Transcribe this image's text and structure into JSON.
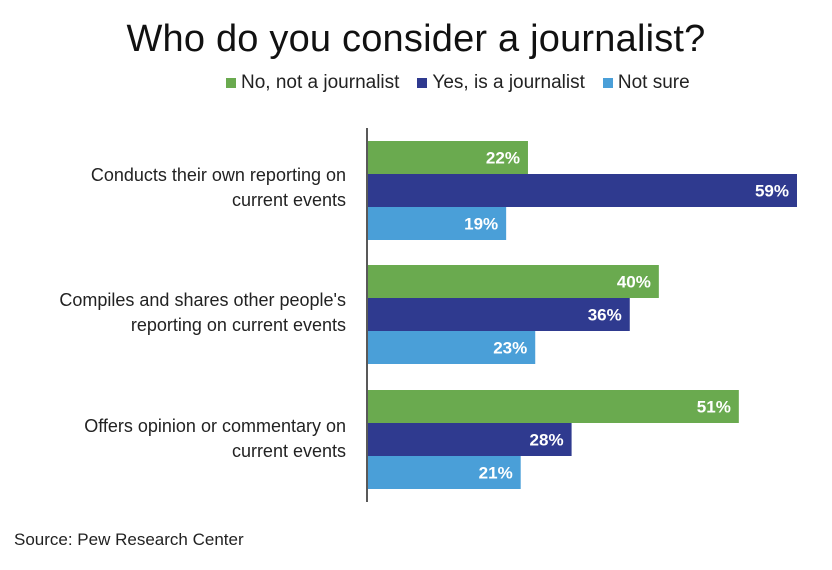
{
  "chart_data": {
    "type": "bar",
    "orientation": "horizontal",
    "title": "Who do you consider a journalist?",
    "categories": [
      "Conducts their own reporting on current events",
      "Compiles and shares other people's reporting on current events",
      "Offers opinion or commentary on current events"
    ],
    "category_lines": [
      [
        "Conducts their own reporting on",
        "current events"
      ],
      [
        "Compiles and shares other people's",
        "reporting on current events"
      ],
      [
        "Offers opinion or commentary on",
        "current events"
      ]
    ],
    "series": [
      {
        "name": "No, not a journalist",
        "color": "#6aaa4f",
        "values": [
          22,
          40,
          51
        ],
        "labels": [
          "22%",
          "40%",
          "51%"
        ]
      },
      {
        "name": "Yes, is a journalist",
        "color": "#2f3a8f",
        "values": [
          59,
          36,
          28
        ],
        "labels": [
          "59%",
          "36%",
          "28%"
        ]
      },
      {
        "name": "Not sure",
        "color": "#4a9fd8",
        "values": [
          19,
          23,
          21
        ],
        "labels": [
          "19%",
          "23%",
          "21%"
        ]
      }
    ],
    "xlim": [
      0,
      59
    ],
    "xlabel": "",
    "ylabel": "",
    "grid": false,
    "legend_position": "top"
  },
  "source": "Source: Pew Research Center"
}
